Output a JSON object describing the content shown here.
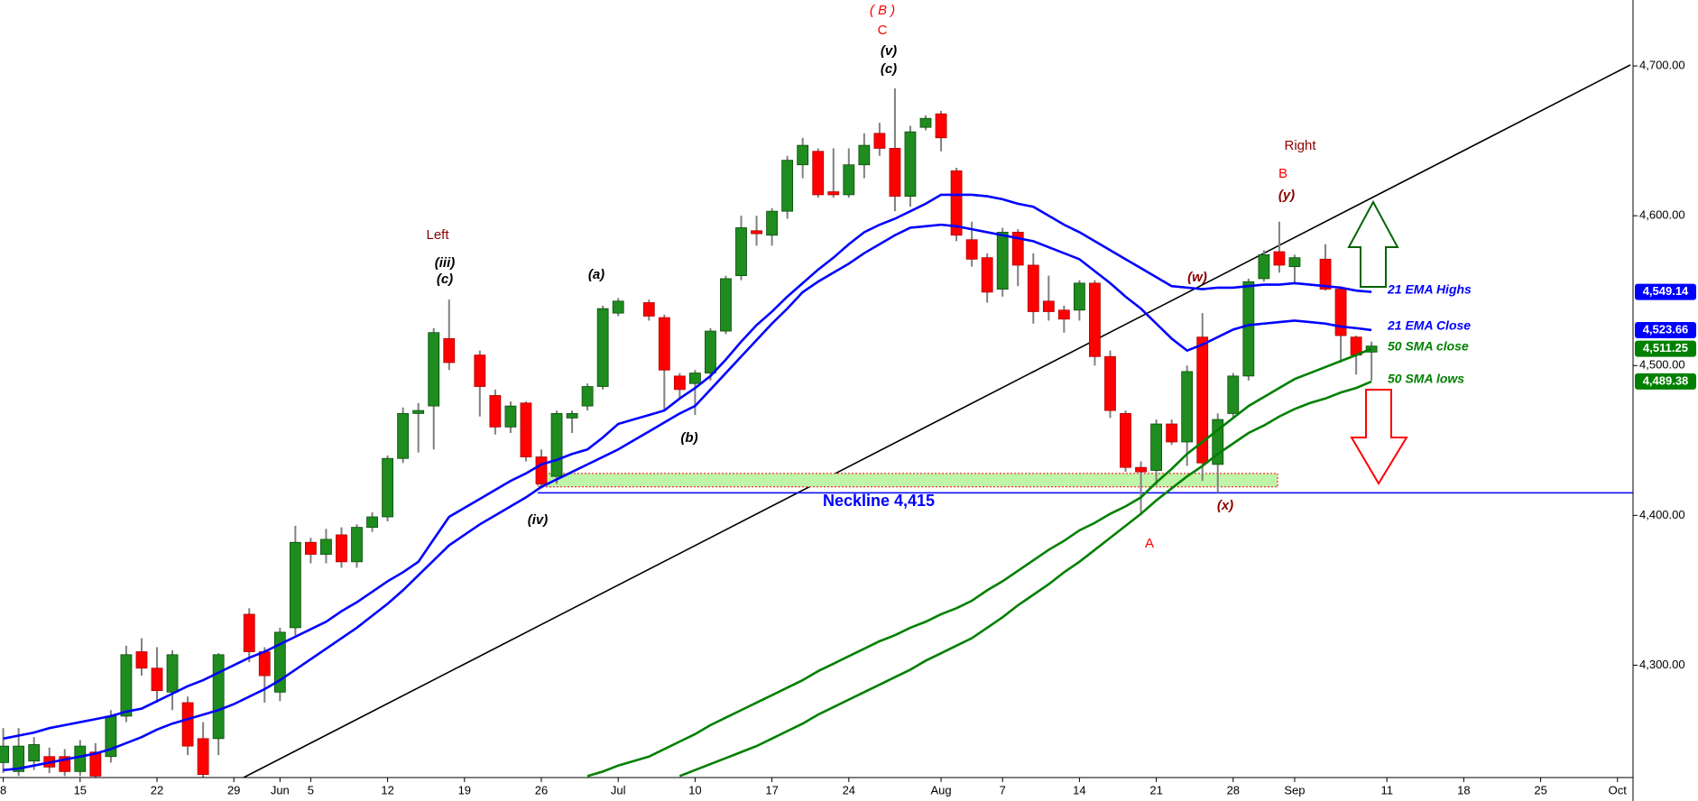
{
  "chart_data": {
    "type": "candlestick",
    "categories": [
      "8",
      null,
      null,
      null,
      null,
      "15",
      null,
      null,
      null,
      null,
      "22",
      null,
      null,
      null,
      null,
      "29",
      null,
      null,
      "Jun",
      null,
      "5",
      null,
      null,
      null,
      null,
      "12",
      null,
      null,
      null,
      null,
      "19",
      null,
      null,
      null,
      null,
      "26",
      null,
      null,
      null,
      null,
      "Jul",
      null,
      null,
      null,
      null,
      "10",
      null,
      null,
      null,
      null,
      "17",
      null,
      null,
      null,
      null,
      "24",
      null,
      null,
      null,
      null,
      null,
      "Aug",
      null,
      null,
      null,
      "7",
      null,
      null,
      null,
      null,
      "14",
      null,
      null,
      null,
      null,
      "21",
      null,
      null,
      null,
      null,
      "28",
      null,
      null,
      null,
      "Sep",
      null,
      null,
      null,
      null,
      null,
      "11",
      null,
      null,
      null,
      null,
      "18",
      null,
      null,
      null,
      null,
      "25",
      null,
      null,
      null,
      null,
      "Oct"
    ],
    "open": [
      4235,
      4229,
      4236,
      4239,
      4239,
      4229,
      4242,
      4239,
      4266,
      4309,
      4298,
      4282,
      4275,
      4251,
      4251,
      null,
      4334,
      4309,
      4282,
      4325,
      4382,
      4374,
      4387,
      4369,
      4392,
      4399,
      4438,
      4468,
      4473,
      4518,
      null,
      4507,
      4480,
      4459,
      4475,
      4439,
      4426,
      4465,
      4473,
      4486,
      4535,
      null,
      4542,
      4532,
      4493,
      4488,
      4495,
      4523,
      4560,
      4590,
      4587,
      4603,
      4634,
      4643,
      4616,
      4614,
      4634,
      4655,
      4645,
      4613,
      4659,
      4668,
      4630,
      4584,
      4572,
      4551,
      4589,
      4567,
      4543,
      4537,
      4537,
      4555,
      4506,
      4468,
      4432,
      4430,
      4461,
      4449,
      4519,
      4434,
      4468,
      4493,
      4558,
      4576,
      4566,
      null,
      4571,
      4551,
      4519,
      4509,
      null,
      null,
      null,
      null,
      null,
      null,
      null,
      null,
      null,
      null,
      null,
      null,
      null,
      null,
      null,
      null
    ],
    "high": [
      4258,
      4258,
      4252,
      4245,
      4244,
      4250,
      4248,
      4270,
      4313,
      4318,
      4312,
      4310,
      4279,
      4262,
      4308,
      null,
      4338,
      4312,
      4325,
      4393,
      4385,
      4391,
      4392,
      4394,
      4402,
      4440,
      4472,
      4475,
      4525,
      4544,
      null,
      4510,
      4484,
      4476,
      4476,
      4444,
      4470,
      4470,
      4488,
      4540,
      4545,
      null,
      4544,
      4534,
      4495,
      4497,
      4525,
      4560,
      4600,
      4600,
      4605,
      4640,
      4652,
      4645,
      4645,
      4645,
      4655,
      4662,
      4685,
      4660,
      4667,
      4670,
      4632,
      4596,
      4575,
      4592,
      4591,
      4575,
      4560,
      4540,
      4557,
      4557,
      4510,
      4470,
      4436,
      4464,
      4464,
      4500,
      4535,
      4468,
      4495,
      4558,
      4577,
      4596,
      4574,
      null,
      4581,
      4553,
      4520,
      4516,
      null,
      null,
      null,
      null,
      null,
      null,
      null,
      null,
      null,
      null,
      null,
      null,
      null,
      null,
      null,
      null
    ],
    "low": [
      4228,
      4226,
      4230,
      4228,
      4226,
      4226,
      4225,
      4235,
      4262,
      4293,
      4275,
      4270,
      4240,
      4225,
      4240,
      null,
      4302,
      4275,
      4276,
      4320,
      4368,
      4368,
      4365,
      4365,
      4389,
      4396,
      4435,
      4442,
      4444,
      4497,
      null,
      4466,
      4454,
      4455,
      4436,
      4418,
      4421,
      4455,
      4470,
      4484,
      4533,
      null,
      4530,
      4470,
      4478,
      4467,
      4490,
      4521,
      4557,
      4580,
      4580,
      4598,
      4625,
      4612,
      4612,
      4612,
      4625,
      4640,
      4603,
      4606,
      4657,
      4643,
      4583,
      4566,
      4542,
      4546,
      4553,
      4528,
      4530,
      4522,
      4530,
      4500,
      4465,
      4429,
      4400,
      4420,
      4447,
      4433,
      4423,
      4415,
      4465,
      4490,
      4556,
      4562,
      4555,
      null,
      4550,
      4502,
      4494,
      4490,
      null,
      null,
      null,
      null,
      null,
      null,
      null,
      null,
      null,
      null,
      null,
      null,
      null,
      null,
      null,
      null
    ],
    "close": [
      4246,
      4246,
      4247,
      4232,
      4229,
      4246,
      4226,
      4266,
      4307,
      4298,
      4283,
      4307,
      4246,
      4227,
      4307,
      null,
      4309,
      4293,
      4322,
      4382,
      4374,
      4384,
      4369,
      4392,
      4399,
      4438,
      4468,
      4470,
      4522,
      4502,
      null,
      4486,
      4459,
      4473,
      4439,
      4421,
      4468,
      4468,
      4486,
      4538,
      4543,
      null,
      4533,
      4497,
      4484,
      4495,
      4523,
      4558,
      4592,
      4588,
      4603,
      4637,
      4647,
      4614,
      4614,
      4634,
      4647,
      4645,
      4613,
      4656,
      4665,
      4652,
      4587,
      4571,
      4549,
      4589,
      4567,
      4536,
      4536,
      4531,
      4555,
      4506,
      4470,
      4432,
      4429,
      4461,
      4449,
      4496,
      4435,
      4464,
      4493,
      4556,
      4574,
      4567,
      4572,
      null,
      4551,
      4520,
      4507,
      4513,
      null,
      null,
      null,
      null,
      null,
      null,
      null,
      null,
      null,
      null,
      null,
      null,
      null,
      null,
      null,
      null
    ],
    "up_color": "#1e8c1e",
    "down_color": "#ff0000",
    "wick_color": "#808080",
    "series": [
      {
        "name": "21 EMA Highs",
        "color": "#0000ff",
        "last_value_label": "4,549.14",
        "values": [
          4251,
          4253,
          4255,
          4258,
          4260,
          4262,
          4264,
          4266,
          4269,
          4271,
          4276,
          4281,
          4286,
          4290,
          4295,
          4300,
          4305,
          4309,
          4314,
          4319,
          4324,
          4329,
          4336,
          4342,
          4349,
          4356,
          4362,
          4369,
          4384,
          4399,
          4405,
          4411,
          4417,
          4423,
          4428,
          4434,
          4437,
          4441,
          4444,
          4452,
          4461,
          4464,
          4467,
          4470,
          4478,
          4485,
          4493,
          4504,
          4516,
          4527,
          4536,
          4546,
          4555,
          4564,
          4572,
          4581,
          4589,
          4594,
          4598,
          4603,
          4608,
          4614,
          4614,
          4614,
          4613,
          4611,
          4608,
          4606,
          4600,
          4594,
          4589,
          4583,
          4577,
          4571,
          4565,
          4559,
          4553,
          4552,
          4551,
          4552,
          4552,
          4553,
          4554,
          4554,
          4555,
          4554,
          4553,
          4552,
          4550,
          4549.14,
          null,
          null,
          null,
          null,
          null,
          null,
          null,
          null,
          null,
          null,
          null,
          null,
          null,
          null,
          null,
          null
        ]
      },
      {
        "name": "21 EMA Close",
        "color": "#0000ff",
        "last_value_label": "4,523.66",
        "values": [
          4230,
          4231,
          4233,
          4235,
          4237,
          4239,
          4241,
          4244,
          4248,
          4252,
          4257,
          4261,
          4264,
          4267,
          4270,
          4274,
          4279,
          4284,
          4290,
          4297,
          4304,
          4311,
          4318,
          4325,
          4333,
          4341,
          4350,
          4360,
          4370,
          4380,
          4387,
          4394,
          4400,
          4406,
          4412,
          4419,
          4424,
          4429,
          4434,
          4439,
          4444,
          4450,
          4456,
          4462,
          4468,
          4473,
          4484,
          4495,
          4506,
          4517,
          4528,
          4538,
          4549,
          4556,
          4562,
          4568,
          4575,
          4581,
          4587,
          4592,
          4593,
          4594,
          4593,
          4591,
          4589,
          4587,
          4585,
          4583,
          4579,
          4575,
          4571,
          4563,
          4555,
          4546,
          4538,
          4528,
          4518,
          4510,
          4514,
          4519,
          4524,
          4527,
          4528,
          4529,
          4530,
          4529,
          4528,
          4526,
          4525,
          4523.66,
          null,
          null,
          null,
          null,
          null,
          null,
          null,
          null,
          null,
          null,
          null,
          null,
          null,
          null,
          null,
          null
        ]
      },
      {
        "name": "50 SMA close",
        "color": "#008000",
        "last_value_label": "4,511.25",
        "values": [
          null,
          null,
          null,
          null,
          null,
          null,
          null,
          null,
          null,
          null,
          null,
          null,
          null,
          null,
          null,
          null,
          null,
          null,
          null,
          null,
          null,
          null,
          null,
          null,
          null,
          null,
          null,
          null,
          null,
          null,
          null,
          null,
          null,
          null,
          null,
          null,
          null,
          null,
          4226,
          4229,
          4233,
          4236,
          4239,
          4244,
          4249,
          4254,
          4260,
          4265,
          4270,
          4275,
          4280,
          4285,
          4290,
          4296,
          4301,
          4306,
          4311,
          4316,
          4320,
          4325,
          4329,
          4334,
          4338,
          4343,
          4350,
          4356,
          4363,
          4370,
          4377,
          4383,
          4390,
          4395,
          4401,
          4406,
          4412,
          4422,
          4431,
          4441,
          4449,
          4457,
          4465,
          4473,
          4479,
          4485,
          4491,
          4495,
          4499,
          4503,
          4507,
          4511.25,
          null,
          null,
          null,
          null,
          null,
          null,
          null,
          null,
          null,
          null,
          null,
          null,
          null,
          null,
          null,
          null
        ]
      },
      {
        "name": "50 SMA lows",
        "color": "#008000",
        "last_value_label": "4,489.38",
        "values": [
          null,
          null,
          null,
          null,
          null,
          null,
          null,
          null,
          null,
          null,
          null,
          null,
          null,
          null,
          null,
          null,
          null,
          null,
          null,
          null,
          null,
          null,
          null,
          null,
          null,
          null,
          null,
          null,
          null,
          null,
          null,
          null,
          null,
          null,
          null,
          null,
          null,
          null,
          null,
          null,
          null,
          null,
          null,
          null,
          4226,
          4230,
          4234,
          4238,
          4242,
          4246,
          4251,
          4256,
          4261,
          4267,
          4272,
          4277,
          4282,
          4287,
          4292,
          4297,
          4303,
          4308,
          4313,
          4318,
          4325,
          4332,
          4340,
          4347,
          4354,
          4362,
          4369,
          4377,
          4385,
          4393,
          4401,
          4410,
          4418,
          4426,
          4433,
          4441,
          4448,
          4455,
          4460,
          4466,
          4471,
          4475,
          4478,
          4482,
          4485,
          4489.38,
          null,
          null,
          null,
          null,
          null,
          null,
          null,
          null,
          null,
          null,
          null,
          null,
          null,
          null,
          null,
          null
        ]
      }
    ],
    "ylim": [
      4225,
      4744
    ],
    "yticks": [
      {
        "value": 4300,
        "label": "4,300.00"
      },
      {
        "value": 4400,
        "label": "4,400.00"
      },
      {
        "value": 4500,
        "label": "4,500.00"
      },
      {
        "value": 4600,
        "label": "4,600.00"
      },
      {
        "value": 4700,
        "label": "4,700.00"
      }
    ],
    "neckline": {
      "value": 4415,
      "label": "Neckline 4,415",
      "color": "#0000ff"
    },
    "support_zone": {
      "low": 4419,
      "high": 4428,
      "color": "#bff5a8"
    },
    "annotations": [
      {
        "text": "( B )",
        "color": "#ff0000"
      },
      {
        "text": "C",
        "color": "#ff0000"
      },
      {
        "text": "(v)",
        "color": "#000000"
      },
      {
        "text": "(c)",
        "color": "#000000"
      },
      {
        "text": "Left",
        "color": "#8b0000"
      },
      {
        "text": "(iii)",
        "color": "#000000"
      },
      {
        "text": "(c)",
        "color": "#000000"
      },
      {
        "text": "(a)",
        "color": "#000000"
      },
      {
        "text": "(b)",
        "color": "#000000"
      },
      {
        "text": "(iv)",
        "color": "#000000"
      },
      {
        "text": "(w)",
        "color": "#8b0000"
      },
      {
        "text": "Right",
        "color": "#8b0000"
      },
      {
        "text": "B",
        "color": "#ff0000"
      },
      {
        "text": "(y)",
        "color": "#8b0000"
      },
      {
        "text": "(x)",
        "color": "#8b0000"
      },
      {
        "text": "A",
        "color": "#ff0000"
      }
    ]
  }
}
